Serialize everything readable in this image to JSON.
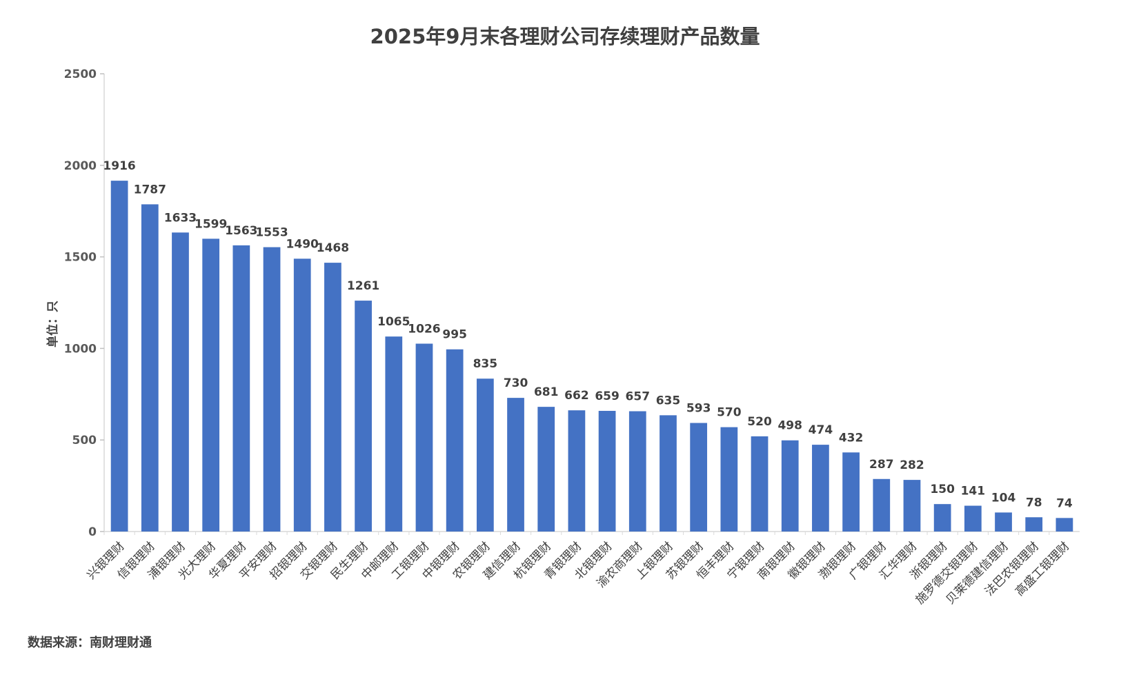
{
  "chart_data": {
    "type": "bar",
    "title": "2025年9月末各理财公司存续理财产品数量",
    "ylabel": "单位：只",
    "xlabel": "",
    "ylim": [
      0,
      2500
    ],
    "yticks": [
      0,
      500,
      1000,
      1500,
      2000,
      2500
    ],
    "grid": false,
    "bar_color": "#4472C4",
    "categories": [
      "兴银理财",
      "信银理财",
      "浦银理财",
      "光大理财",
      "华夏理财",
      "平安理财",
      "招银理财",
      "交银理财",
      "民生理财",
      "中邮理财",
      "工银理财",
      "中银理财",
      "农银理财",
      "建信理财",
      "杭银理财",
      "青银理财",
      "北银理财",
      "渝农商理财",
      "上银理财",
      "苏银理财",
      "恒丰理财",
      "宁银理财",
      "南银理财",
      "徽银理财",
      "渤银理财",
      "广银理财",
      "汇华理财",
      "浙银理财",
      "施罗德交银理财",
      "贝莱德建信理财",
      "法巴农银理财",
      "高盛工银理财"
    ],
    "values": [
      1916,
      1787,
      1633,
      1599,
      1563,
      1553,
      1490,
      1468,
      1261,
      1065,
      1026,
      995,
      835,
      730,
      681,
      662,
      659,
      657,
      635,
      593,
      570,
      520,
      498,
      474,
      432,
      287,
      282,
      150,
      141,
      104,
      78,
      74
    ],
    "source": "数据来源：南财理财通"
  }
}
